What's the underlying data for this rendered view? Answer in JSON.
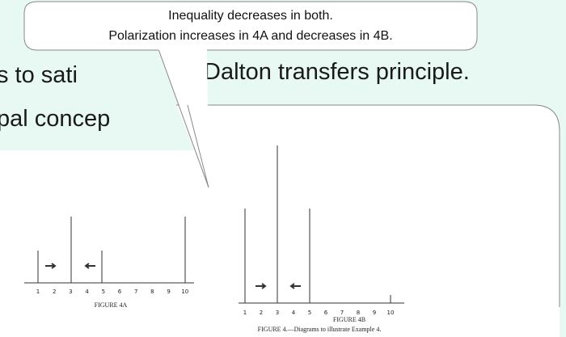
{
  "slide": {
    "line1_left": "s to sati",
    "line1_right": "Dalton transfers principle.",
    "line2": "pal concep"
  },
  "callout": {
    "line1": "Inequality decreases in both.",
    "line2": "Polarization increases in 4A and decreases in 4B."
  },
  "figure": {
    "ticks": [
      "1",
      "2",
      "3",
      "4",
      "5",
      "6",
      "7",
      "8",
      "9",
      "10"
    ],
    "caption_a": "FIGURE 4A",
    "caption_b": "FIGURE 4B",
    "caption": "FIGURE 4.—Diagrams to illustrate Example 4."
  }
}
